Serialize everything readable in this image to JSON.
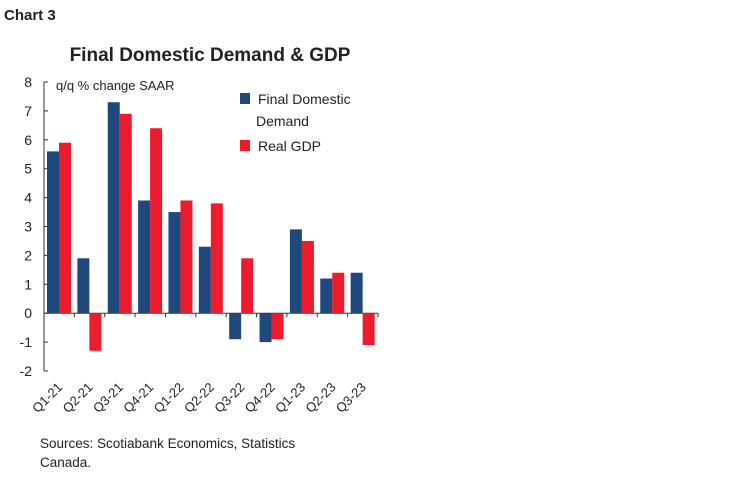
{
  "label": "Chart 3",
  "chart_data": {
    "type": "bar",
    "title": "Final Domestic Demand & GDP",
    "ylabel": "q/q % change SAAR",
    "ylim": [
      -2,
      8
    ],
    "yticks": [
      "8",
      "7",
      "6",
      "5",
      "4",
      "3",
      "2",
      "1",
      "0",
      "-1",
      "-2"
    ],
    "grid": false,
    "legend_position": "top-right",
    "categories": [
      "Q1-21",
      "Q2-21",
      "Q3-21",
      "Q4-21",
      "Q1-22",
      "Q2-22",
      "Q3-22",
      "Q4-22",
      "Q1-23",
      "Q2-23",
      "Q3-23"
    ],
    "series": [
      {
        "name": "Final Domestic Demand",
        "name_lines": [
          "Final Domestic",
          "Demand"
        ],
        "color": "#1f497d",
        "values": [
          5.6,
          1.9,
          7.3,
          3.9,
          3.5,
          2.3,
          -0.9,
          -1.0,
          2.9,
          1.2,
          1.4
        ]
      },
      {
        "name": "Real GDP",
        "color": "#ed1b2e",
        "values": [
          5.9,
          -1.3,
          6.9,
          6.4,
          3.9,
          3.8,
          1.9,
          -0.9,
          2.5,
          1.4,
          -1.1
        ]
      }
    ]
  },
  "source": [
    "Sources: Scotiabank Economics, Statistics",
    "Canada."
  ]
}
